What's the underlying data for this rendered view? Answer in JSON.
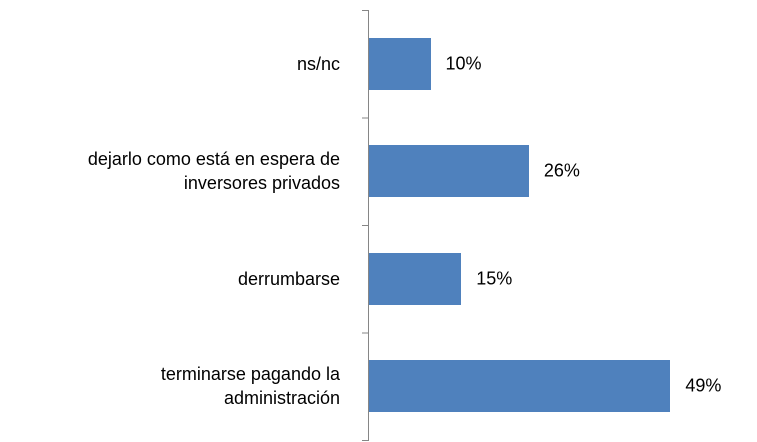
{
  "chart_data": {
    "type": "bar",
    "orientation": "horizontal",
    "categories": [
      "ns/nc",
      "dejarlo como está en espera de inversores privados",
      "derrumbarse",
      "terminarse pagando la administración"
    ],
    "values": [
      10,
      26,
      15,
      49
    ],
    "value_labels": [
      "10%",
      "26%",
      "15%",
      "49%"
    ],
    "color": "#4f81bd"
  }
}
